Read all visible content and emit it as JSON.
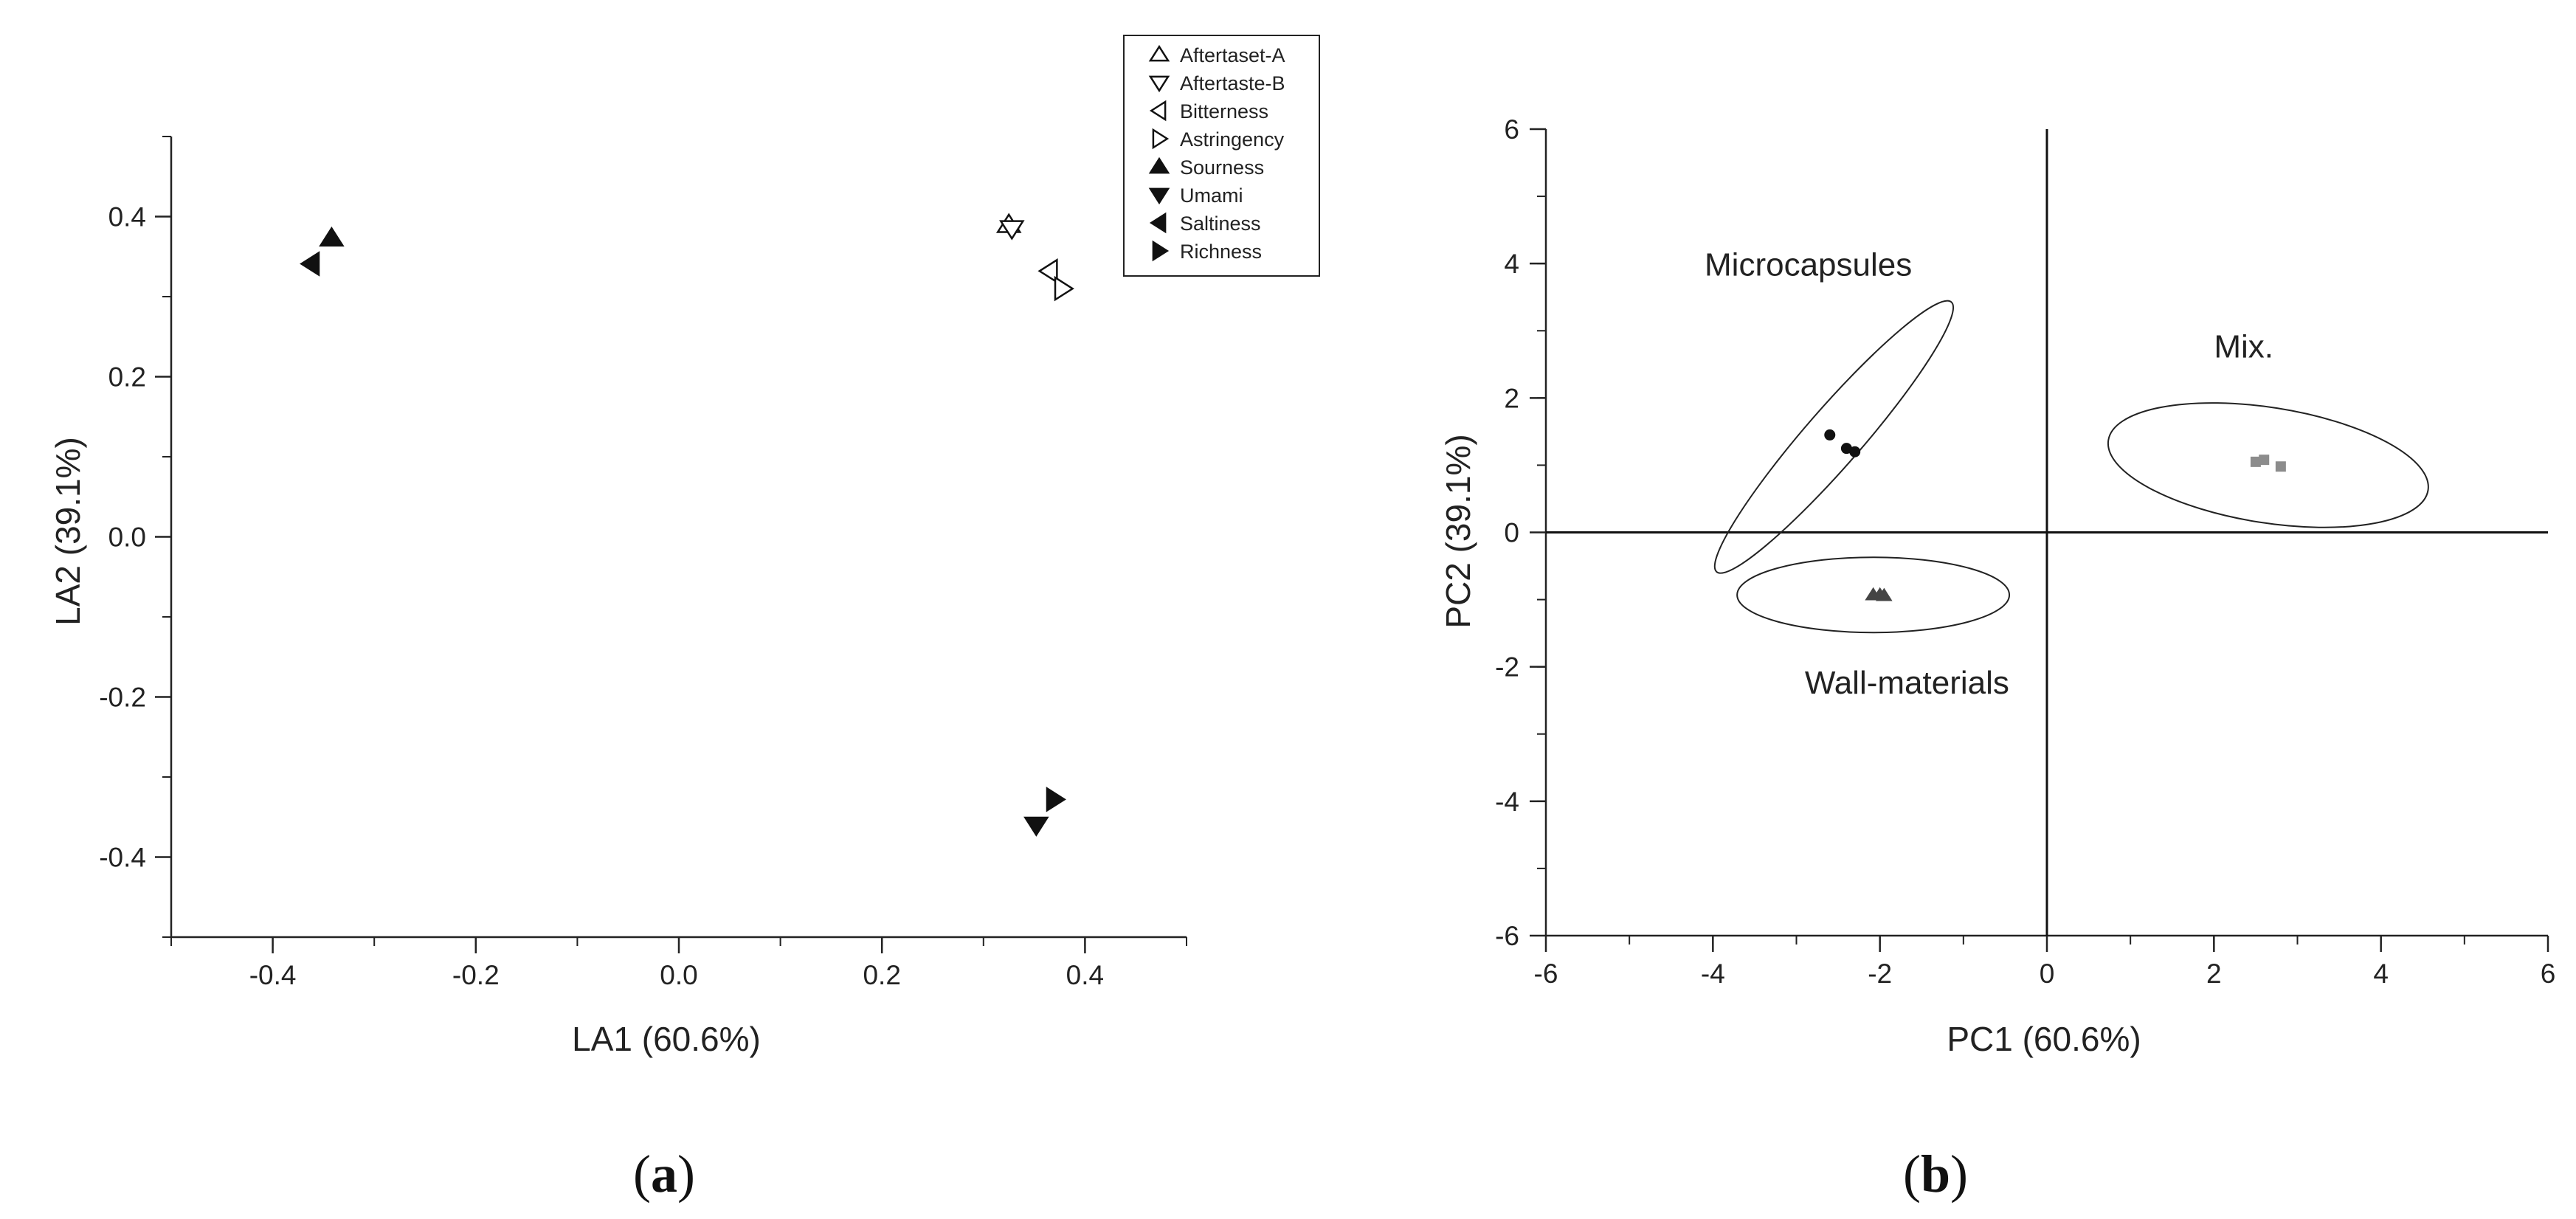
{
  "panel_labels": {
    "a": {
      "open": "(",
      "letter": "a",
      "close": ")"
    },
    "b": {
      "open": "(",
      "letter": "b",
      "close": ")"
    }
  },
  "chart_data": [
    {
      "type": "scatter",
      "panel": "a",
      "xlabel": "LA1 (60.6%)",
      "ylabel": "LA2 (39.1%)",
      "xlim": [
        -0.5,
        0.5
      ],
      "ylim": [
        -0.5,
        0.5
      ],
      "xticks": [
        -0.4,
        -0.2,
        0.0,
        0.2,
        0.4
      ],
      "xtick_labels": [
        "-0.4",
        "-0.2",
        "0.0",
        "0.2",
        "0.4"
      ],
      "yticks": [
        -0.4,
        -0.2,
        0.0,
        0.2,
        0.4
      ],
      "ytick_labels": [
        "-0.4",
        "-0.2",
        "0.0",
        "0.2",
        "0.4"
      ],
      "minor_tick_step": 0.1,
      "grid": false,
      "legend_position": "top-right",
      "series": [
        {
          "name": "Aftertaset-A",
          "marker": "triangle-up",
          "filled": false,
          "x": 0.325,
          "y": 0.39
        },
        {
          "name": "Aftertaste-B",
          "marker": "triangle-down",
          "filled": false,
          "x": 0.328,
          "y": 0.385
        },
        {
          "name": "Bitterness",
          "marker": "triangle-left",
          "filled": false,
          "x": 0.365,
          "y": 0.332
        },
        {
          "name": "Astringency",
          "marker": "triangle-right",
          "filled": false,
          "x": 0.378,
          "y": 0.31
        },
        {
          "name": "Sourness",
          "marker": "triangle-up",
          "filled": true,
          "x": -0.342,
          "y": 0.373
        },
        {
          "name": "Umami",
          "marker": "triangle-down",
          "filled": true,
          "x": 0.352,
          "y": -0.36
        },
        {
          "name": "Saltiness",
          "marker": "triangle-left",
          "filled": true,
          "x": -0.362,
          "y": 0.341
        },
        {
          "name": "Richness",
          "marker": "triangle-right",
          "filled": true,
          "x": 0.37,
          "y": -0.328
        }
      ]
    },
    {
      "type": "scatter",
      "panel": "b",
      "xlabel": "PC1 (60.6%)",
      "ylabel": "PC2 (39.1%)",
      "xlim": [
        -6,
        6
      ],
      "ylim": [
        -6,
        6
      ],
      "xticks": [
        -6,
        -4,
        -2,
        0,
        2,
        4,
        6
      ],
      "xtick_labels": [
        "-6",
        "-4",
        "-2",
        "0",
        "2",
        "4",
        "6"
      ],
      "yticks": [
        -6,
        -4,
        -2,
        0,
        2,
        4,
        6
      ],
      "ytick_labels": [
        "-6",
        "-4",
        "-2",
        "0",
        "2",
        "4",
        "6"
      ],
      "minor_tick_step": 1,
      "grid": false,
      "zero_lines": true,
      "groups": [
        {
          "name": "Microcapsules",
          "label": "Microcapsules",
          "marker": "circle",
          "color": "#111111",
          "points": [
            [
              -2.6,
              1.45
            ],
            [
              -2.4,
              1.25
            ],
            [
              -2.3,
              1.2
            ]
          ],
          "ellipse": {
            "center": [
              -2.55,
              1.42
            ],
            "rx": 2.45,
            "ry": 0.36,
            "angle_deg": 55
          },
          "label_at": [
            -4.1,
            3.82
          ]
        },
        {
          "name": "Wall-materials",
          "label": "Wall-materials",
          "marker": "triangle-up",
          "color": "#444444",
          "points": [
            [
              -2.08,
              -0.93
            ],
            [
              -2.0,
              -0.93
            ],
            [
              -1.95,
              -0.94
            ]
          ],
          "ellipse": {
            "center": [
              -2.08,
              -0.93
            ],
            "rx": 1.63,
            "ry": 0.56,
            "angle_deg": 0
          },
          "label_at": [
            -2.9,
            -2.4
          ]
        },
        {
          "name": "Mix.",
          "label": "Mix.",
          "marker": "square",
          "color": "#8c8c8c",
          "points": [
            [
              2.5,
              1.05
            ],
            [
              2.6,
              1.08
            ],
            [
              2.8,
              0.98
            ]
          ],
          "ellipse": {
            "center": [
              2.65,
              1.0
            ],
            "rx": 1.95,
            "ry": 0.85,
            "angle_deg": -11
          },
          "label_at": [
            2.0,
            2.6
          ]
        }
      ]
    }
  ]
}
